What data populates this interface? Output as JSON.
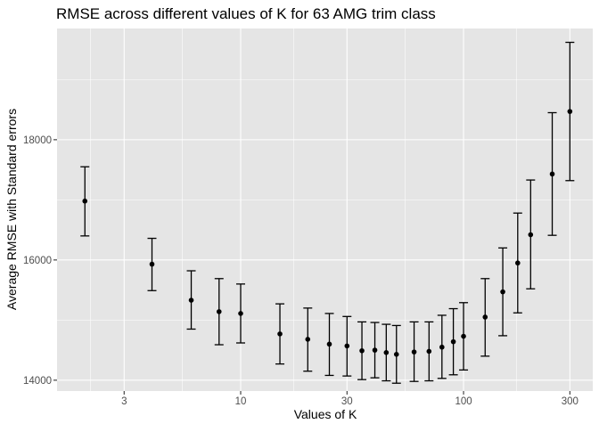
{
  "chart_data": {
    "type": "scatter",
    "title": "RMSE across different values of K for 63 AMG trim class",
    "xlabel": "Values of K",
    "ylabel": "Average RMSE with Standard errors",
    "x_scale": "log10",
    "xlim": [
      1.5,
      380
    ],
    "ylim": [
      13820,
      19850
    ],
    "x_ticks": [
      {
        "value": 3,
        "label": "3"
      },
      {
        "value": 10,
        "label": "10"
      },
      {
        "value": 30,
        "label": "30"
      },
      {
        "value": 100,
        "label": "100"
      },
      {
        "value": 300,
        "label": "300"
      }
    ],
    "y_ticks": [
      {
        "value": 14000,
        "label": "14000"
      },
      {
        "value": 16000,
        "label": "16000"
      },
      {
        "value": 18000,
        "label": "18000"
      }
    ],
    "grid": true,
    "panel_background": "#e5e5e5",
    "grid_color": "#ffffff",
    "point_color": "#000000",
    "points": [
      {
        "k": 2,
        "rmse": 16980,
        "lower": 16400,
        "upper": 17550
      },
      {
        "k": 4,
        "rmse": 15930,
        "lower": 15490,
        "upper": 16360
      },
      {
        "k": 6,
        "rmse": 15330,
        "lower": 14850,
        "upper": 15820
      },
      {
        "k": 8,
        "rmse": 15140,
        "lower": 14590,
        "upper": 15690
      },
      {
        "k": 10,
        "rmse": 15110,
        "lower": 14620,
        "upper": 15600
      },
      {
        "k": 15,
        "rmse": 14770,
        "lower": 14270,
        "upper": 15270
      },
      {
        "k": 20,
        "rmse": 14680,
        "lower": 14150,
        "upper": 15200
      },
      {
        "k": 25,
        "rmse": 14600,
        "lower": 14080,
        "upper": 15110
      },
      {
        "k": 30,
        "rmse": 14570,
        "lower": 14070,
        "upper": 15060
      },
      {
        "k": 35,
        "rmse": 14490,
        "lower": 14010,
        "upper": 14970
      },
      {
        "k": 40,
        "rmse": 14500,
        "lower": 14040,
        "upper": 14960
      },
      {
        "k": 45,
        "rmse": 14460,
        "lower": 13990,
        "upper": 14930
      },
      {
        "k": 50,
        "rmse": 14430,
        "lower": 13950,
        "upper": 14910
      },
      {
        "k": 60,
        "rmse": 14470,
        "lower": 13980,
        "upper": 14970
      },
      {
        "k": 70,
        "rmse": 14480,
        "lower": 13990,
        "upper": 14970
      },
      {
        "k": 80,
        "rmse": 14550,
        "lower": 14030,
        "upper": 15080
      },
      {
        "k": 90,
        "rmse": 14640,
        "lower": 14090,
        "upper": 15190
      },
      {
        "k": 100,
        "rmse": 14730,
        "lower": 14170,
        "upper": 15290
      },
      {
        "k": 125,
        "rmse": 15050,
        "lower": 14400,
        "upper": 15690
      },
      {
        "k": 150,
        "rmse": 15470,
        "lower": 14740,
        "upper": 16200
      },
      {
        "k": 175,
        "rmse": 15950,
        "lower": 15120,
        "upper": 16780
      },
      {
        "k": 200,
        "rmse": 16420,
        "lower": 15520,
        "upper": 17330
      },
      {
        "k": 250,
        "rmse": 17430,
        "lower": 16410,
        "upper": 18450
      },
      {
        "k": 300,
        "rmse": 18470,
        "lower": 17320,
        "upper": 19620
      }
    ]
  }
}
